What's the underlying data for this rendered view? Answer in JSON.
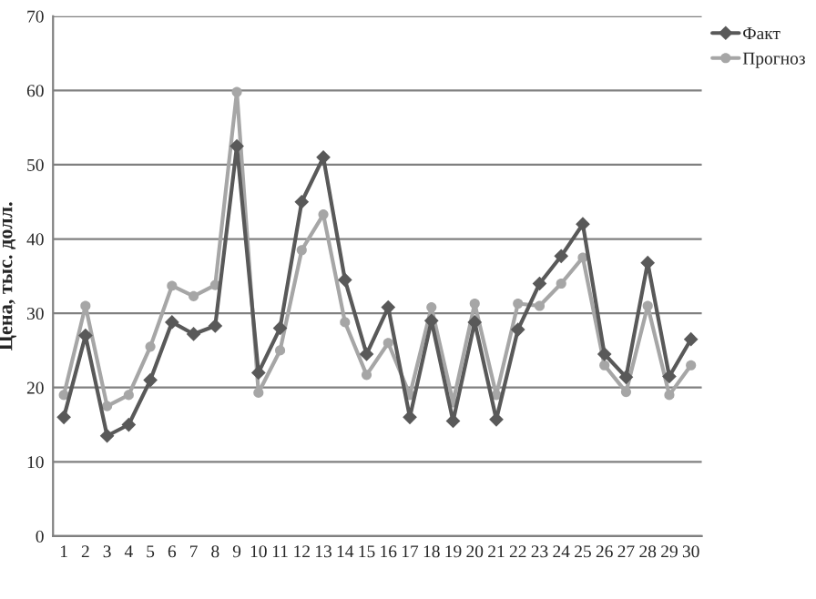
{
  "chart_data": {
    "type": "line",
    "ylabel": "Цена, тыс. долл.",
    "categories": [
      "1",
      "2",
      "3",
      "4",
      "5",
      "6",
      "7",
      "8",
      "9",
      "10",
      "11",
      "12",
      "13",
      "14",
      "15",
      "16",
      "17",
      "18",
      "19",
      "20",
      "21",
      "22",
      "23",
      "24",
      "25",
      "26",
      "27",
      "28",
      "29",
      "30"
    ],
    "series": [
      {
        "name": "Факт",
        "color": "#595959",
        "marker": "diamond",
        "values": [
          16,
          27,
          13.5,
          15,
          21,
          28.8,
          27.2,
          28.3,
          52.5,
          22,
          28,
          45,
          51,
          34.5,
          24.5,
          30.8,
          16,
          29,
          15.5,
          28.8,
          15.7,
          27.8,
          34,
          37.7,
          42,
          24.5,
          21.4,
          36.8,
          21.5,
          26.5
        ]
      },
      {
        "name": "Прогноз",
        "color": "#a6a6a6",
        "marker": "circle",
        "values": [
          19,
          31,
          17.5,
          19,
          25.5,
          33.7,
          32.3,
          33.8,
          59.8,
          19.3,
          25,
          38.5,
          43.3,
          28.8,
          21.7,
          26,
          19,
          30.8,
          18,
          31.3,
          19,
          31.3,
          31,
          34,
          37.5,
          23,
          19.4,
          31,
          19,
          23
        ]
      }
    ],
    "ylim": [
      0,
      70
    ],
    "yticks": [
      0,
      10,
      20,
      30,
      40,
      50,
      60,
      70
    ],
    "grid": "y",
    "legend": "top right"
  }
}
